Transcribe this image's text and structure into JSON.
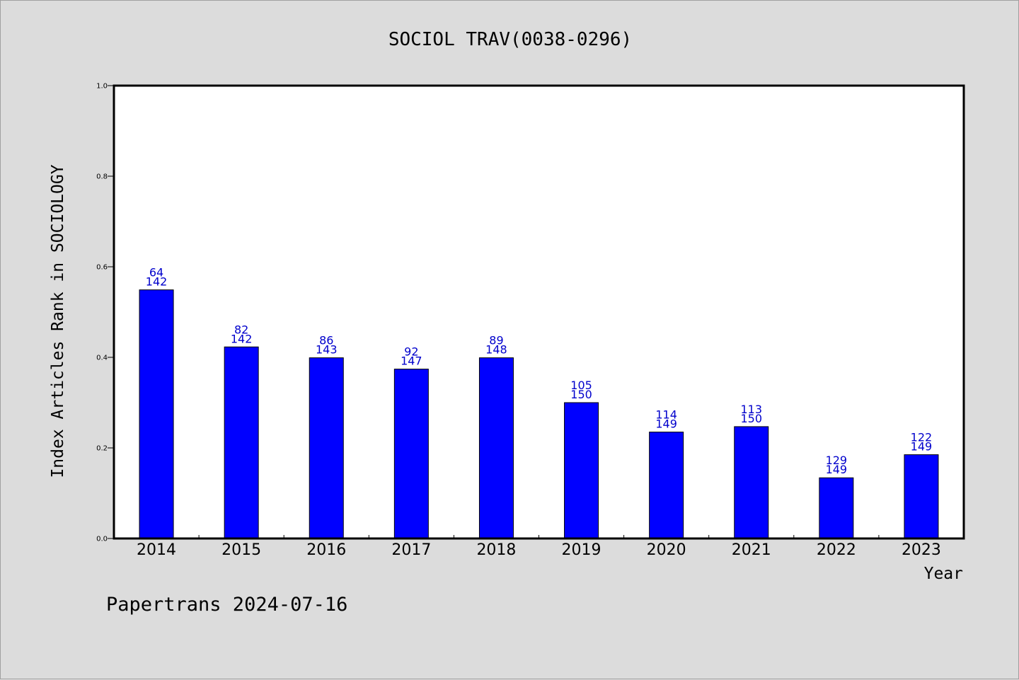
{
  "chart_data": {
    "type": "bar",
    "title": "SOCIOL TRAV(0038-0296)",
    "xlabel": "Year",
    "ylabel": "Index Articles Rank in SOCIOLOGY",
    "categories": [
      "2014",
      "2015",
      "2016",
      "2017",
      "2018",
      "2019",
      "2020",
      "2021",
      "2022",
      "2023"
    ],
    "values": [
      0.549,
      0.423,
      0.399,
      0.374,
      0.399,
      0.3,
      0.235,
      0.247,
      0.134,
      0.185
    ],
    "rank_labels": [
      "64",
      "82",
      "86",
      "92",
      "89",
      "105",
      "114",
      "113",
      "129",
      "122"
    ],
    "total_labels": [
      "142",
      "142",
      "143",
      "147",
      "148",
      "150",
      "149",
      "150",
      "149",
      "149"
    ],
    "ylim": [
      0.0,
      1.0
    ],
    "yticks": [
      "0.0",
      "0.2",
      "0.4",
      "0.6",
      "0.8",
      "1.0"
    ],
    "bar_color": "#0000ff",
    "label_color": "#0000cc",
    "grid": false,
    "legend": "none"
  },
  "footer": {
    "text": "Papertrans 2024-07-16"
  },
  "colors": {
    "background": "#dcdcdc",
    "plot_area": "#ffffff"
  }
}
